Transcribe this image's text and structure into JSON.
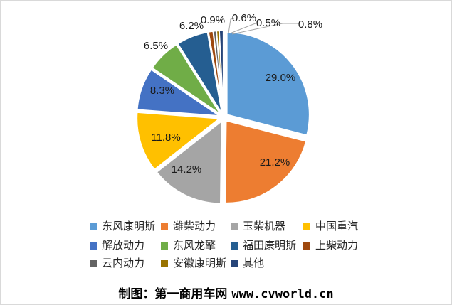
{
  "chart_data": {
    "type": "pie",
    "title": "",
    "legend_position": "bottom",
    "start_angle_deg": 0,
    "direction": "clockwise",
    "series": [
      {
        "name": "东风康明斯",
        "value": 29.0,
        "color": "#5B9BD5"
      },
      {
        "name": "潍柴动力",
        "value": 21.2,
        "color": "#ED7D31"
      },
      {
        "name": "玉柴机器",
        "value": 14.2,
        "color": "#A5A5A5"
      },
      {
        "name": "中国重汽",
        "value": 11.8,
        "color": "#FFC000"
      },
      {
        "name": "解放动力",
        "value": 8.3,
        "color": "#4472C4"
      },
      {
        "name": "东风龙擎",
        "value": 6.5,
        "color": "#70AD47"
      },
      {
        "name": "福田康明斯",
        "value": 6.2,
        "color": "#255E91"
      },
      {
        "name": "上柴动力",
        "value": 0.9,
        "color": "#9E480E"
      },
      {
        "name": "云内动力",
        "value": 0.6,
        "color": "#636363"
      },
      {
        "name": "安徽康明斯",
        "value": 0.5,
        "color": "#997300"
      },
      {
        "name": "其他",
        "value": 0.8,
        "color": "#264478"
      }
    ],
    "labels": [
      "29.0%",
      "21.2%",
      "14.2%",
      "11.8%",
      "8.3%",
      "6.5%",
      "6.2%",
      "0.9%",
      "0.6%",
      "0.5%",
      "0.8%"
    ],
    "leader_line_color": "#A6A6A6"
  },
  "footer": {
    "credit": "制图：第一商用车网",
    "url": "www.cvworld.cn"
  }
}
